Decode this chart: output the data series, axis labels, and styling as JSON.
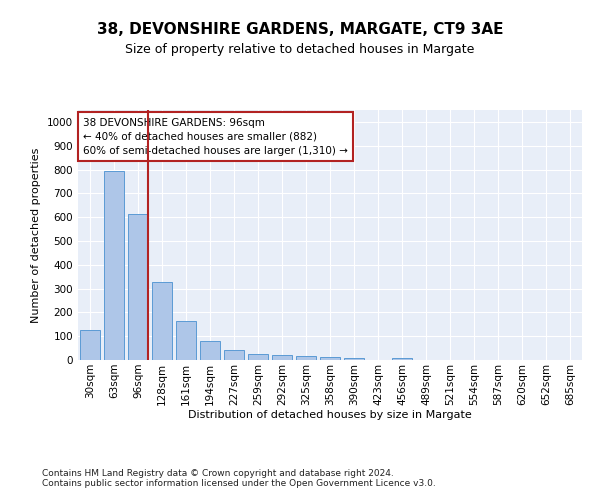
{
  "title1": "38, DEVONSHIRE GARDENS, MARGATE, CT9 3AE",
  "title2": "Size of property relative to detached houses in Margate",
  "xlabel": "Distribution of detached houses by size in Margate",
  "ylabel": "Number of detached properties",
  "categories": [
    "30sqm",
    "63sqm",
    "96sqm",
    "128sqm",
    "161sqm",
    "194sqm",
    "227sqm",
    "259sqm",
    "292sqm",
    "325sqm",
    "358sqm",
    "390sqm",
    "423sqm",
    "456sqm",
    "489sqm",
    "521sqm",
    "554sqm",
    "587sqm",
    "620sqm",
    "652sqm",
    "685sqm"
  ],
  "values": [
    125,
    795,
    615,
    328,
    163,
    78,
    40,
    27,
    23,
    16,
    14,
    10,
    0,
    9,
    0,
    0,
    0,
    0,
    0,
    0,
    0
  ],
  "bar_color": "#aec6e8",
  "bar_edge_color": "#5b9bd5",
  "highlight_line_index": 2,
  "highlight_line_color": "#b22222",
  "annotation_text": "38 DEVONSHIRE GARDENS: 96sqm\n← 40% of detached houses are smaller (882)\n60% of semi-detached houses are larger (1,310) →",
  "annotation_box_color": "#b22222",
  "ylim": [
    0,
    1050
  ],
  "yticks": [
    0,
    100,
    200,
    300,
    400,
    500,
    600,
    700,
    800,
    900,
    1000
  ],
  "footer1": "Contains HM Land Registry data © Crown copyright and database right 2024.",
  "footer2": "Contains public sector information licensed under the Open Government Licence v3.0.",
  "bg_color": "#e8eef8",
  "grid_color": "#ffffff",
  "title1_fontsize": 11,
  "title2_fontsize": 9,
  "axis_label_fontsize": 8,
  "tick_fontsize": 7.5,
  "annotation_fontsize": 7.5,
  "footer_fontsize": 6.5
}
